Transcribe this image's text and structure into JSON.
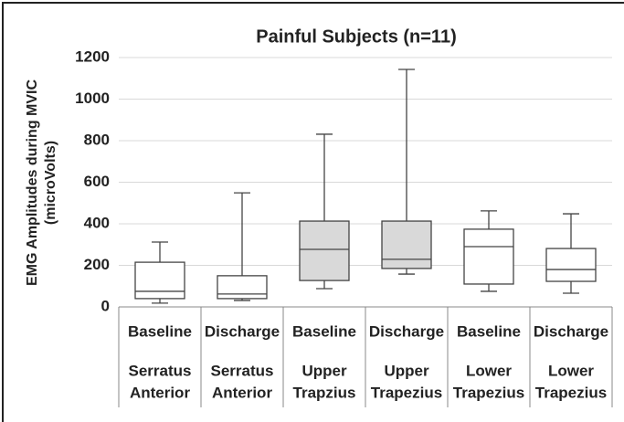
{
  "chart_data": {
    "type": "box",
    "title": "Painful Subjects (n=11)",
    "ylabel": [
      "EMG Amplitudes during MVIC",
      "(microVolts)"
    ],
    "categories": [
      "Baseline",
      "Discharge",
      "Baseline",
      "Discharge",
      "Baseline",
      "Discharge"
    ],
    "groups": [
      [
        "Serratus",
        "Anterior"
      ],
      [
        "Serratus",
        "Anterior"
      ],
      [
        "Upper",
        "Trapzius"
      ],
      [
        "Upper",
        "Trapezius"
      ],
      [
        "Lower",
        "Trapezius"
      ],
      [
        "Lower",
        "Trapezius"
      ]
    ],
    "boxes": [
      {
        "min": 18,
        "q1": 40,
        "median": 75,
        "q3": 215,
        "max": 312,
        "color": "#ffffff"
      },
      {
        "min": 31,
        "q1": 40,
        "median": 62,
        "q3": 150,
        "max": 549,
        "color": "#ffffff"
      },
      {
        "min": 88,
        "q1": 127,
        "median": 277,
        "q3": 413,
        "max": 831,
        "color": "#d9d9d9"
      },
      {
        "min": 158,
        "q1": 185,
        "median": 229,
        "q3": 413,
        "max": 1143,
        "color": "#d9d9d9"
      },
      {
        "min": 75,
        "q1": 110,
        "median": 290,
        "q3": 374,
        "max": 462,
        "color": "#ffffff"
      },
      {
        "min": 66,
        "q1": 123,
        "median": 180,
        "q3": 281,
        "max": 448,
        "color": "#ffffff"
      }
    ],
    "ylim": [
      0,
      1200
    ],
    "yticks": [
      0,
      200,
      400,
      600,
      800,
      1000,
      1200
    ],
    "grid": true
  }
}
